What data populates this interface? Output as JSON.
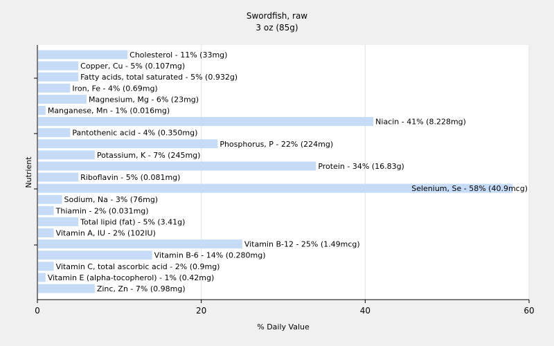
{
  "chart_data": {
    "type": "bar",
    "orientation": "horizontal",
    "title": "Swordfish, raw",
    "subtitle": "3 oz (85g)",
    "xlabel": "% Daily Value",
    "ylabel": "Nutrient",
    "xlim": [
      0,
      60
    ],
    "xticks": [
      0,
      20,
      40,
      60
    ],
    "grid": true,
    "legend": "none",
    "bar_color": "#c6dcf6",
    "categories": [
      "Cholesterol",
      "Copper, Cu",
      "Fatty acids, total saturated",
      "Iron, Fe",
      "Magnesium, Mg",
      "Manganese, Mn",
      "Niacin",
      "Pantothenic acid",
      "Phosphorus, P",
      "Potassium, K",
      "Protein",
      "Riboflavin",
      "Selenium, Se",
      "Sodium, Na",
      "Thiamin",
      "Total lipid (fat)",
      "Vitamin A, IU",
      "Vitamin B-12",
      "Vitamin B-6",
      "Vitamin C, total ascorbic acid",
      "Vitamin E (alpha-tocopherol)",
      "Zinc, Zn"
    ],
    "values": [
      11,
      5,
      5,
      4,
      6,
      1,
      41,
      4,
      22,
      7,
      34,
      5,
      58,
      3,
      2,
      5,
      2,
      25,
      14,
      2,
      1,
      7
    ],
    "labels": [
      "Cholesterol - 11% (33mg)",
      "Copper, Cu - 5% (0.107mg)",
      "Fatty acids, total saturated - 5% (0.932g)",
      "Iron, Fe - 4% (0.69mg)",
      "Magnesium, Mg - 6% (23mg)",
      "Manganese, Mn - 1% (0.016mg)",
      "Niacin - 41% (8.228mg)",
      "Pantothenic acid - 4% (0.350mg)",
      "Phosphorus, P - 22% (224mg)",
      "Potassium, K - 7% (245mg)",
      "Protein - 34% (16.83g)",
      "Riboflavin - 5% (0.081mg)",
      "Selenium, Se - 58% (40.9mcg)",
      "Sodium, Na - 3% (76mg)",
      "Thiamin - 2% (0.031mg)",
      "Total lipid (fat) - 5% (3.41g)",
      "Vitamin A, IU - 2% (102IU)",
      "Vitamin B-12 - 25% (1.49mcg)",
      "Vitamin B-6 - 14% (0.280mg)",
      "Vitamin C, total ascorbic acid - 2% (0.9mg)",
      "Vitamin E (alpha-tocopherol) - 1% (0.42mg)",
      "Zinc, Zn - 7% (0.98mg)"
    ]
  }
}
